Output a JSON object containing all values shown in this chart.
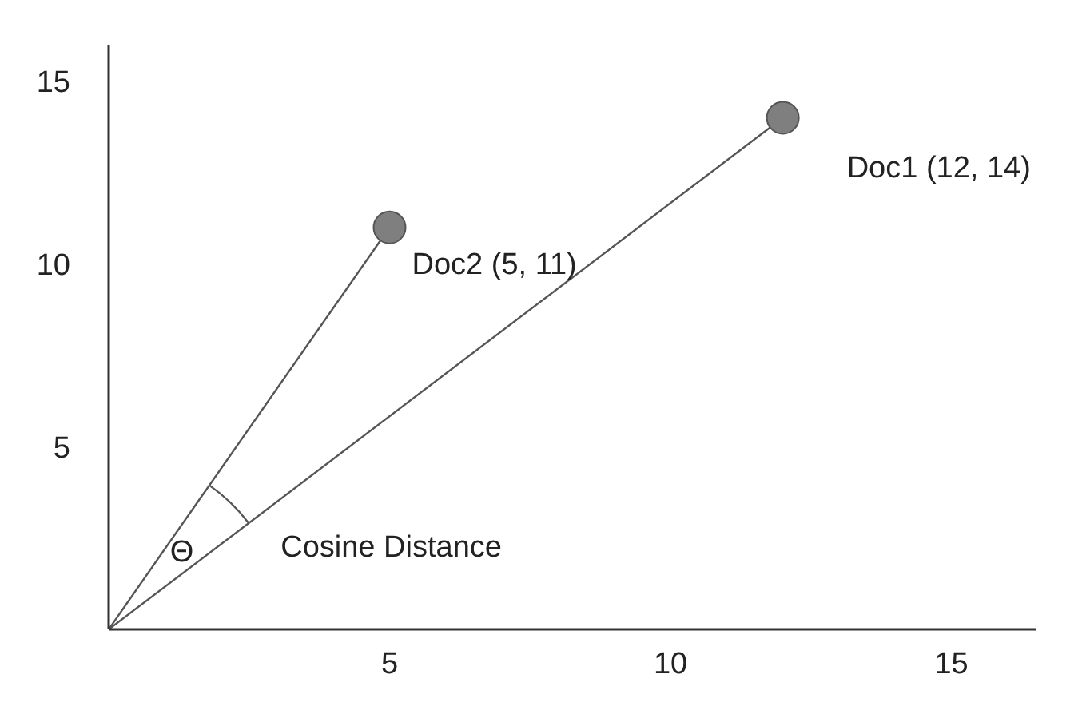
{
  "chart_data": {
    "type": "line",
    "xlim": [
      0,
      16.5
    ],
    "ylim": [
      0,
      16
    ],
    "xticks": [
      5,
      10,
      15
    ],
    "yticks": [
      5,
      10,
      15
    ],
    "grid": false,
    "series": [
      {
        "color": "#555555",
        "x": [
          0,
          12
        ],
        "values": [
          0,
          14
        ],
        "marker": "none"
      },
      {
        "color": "#555555",
        "x": [
          0,
          5
        ],
        "values": [
          0,
          11
        ],
        "marker": "none"
      },
      {
        "type": "scatter",
        "color": "#7f7f7f",
        "x": [
          12,
          5
        ],
        "values": [
          14,
          11
        ],
        "marker": "circle"
      }
    ],
    "annotations": [
      {
        "text": "Doc1 (12, 14)",
        "x": 12,
        "y": 14
      },
      {
        "text": "Doc2 (5, 11)",
        "x": 5,
        "y": 11
      },
      "Θ",
      "Cosine Distance"
    ]
  }
}
